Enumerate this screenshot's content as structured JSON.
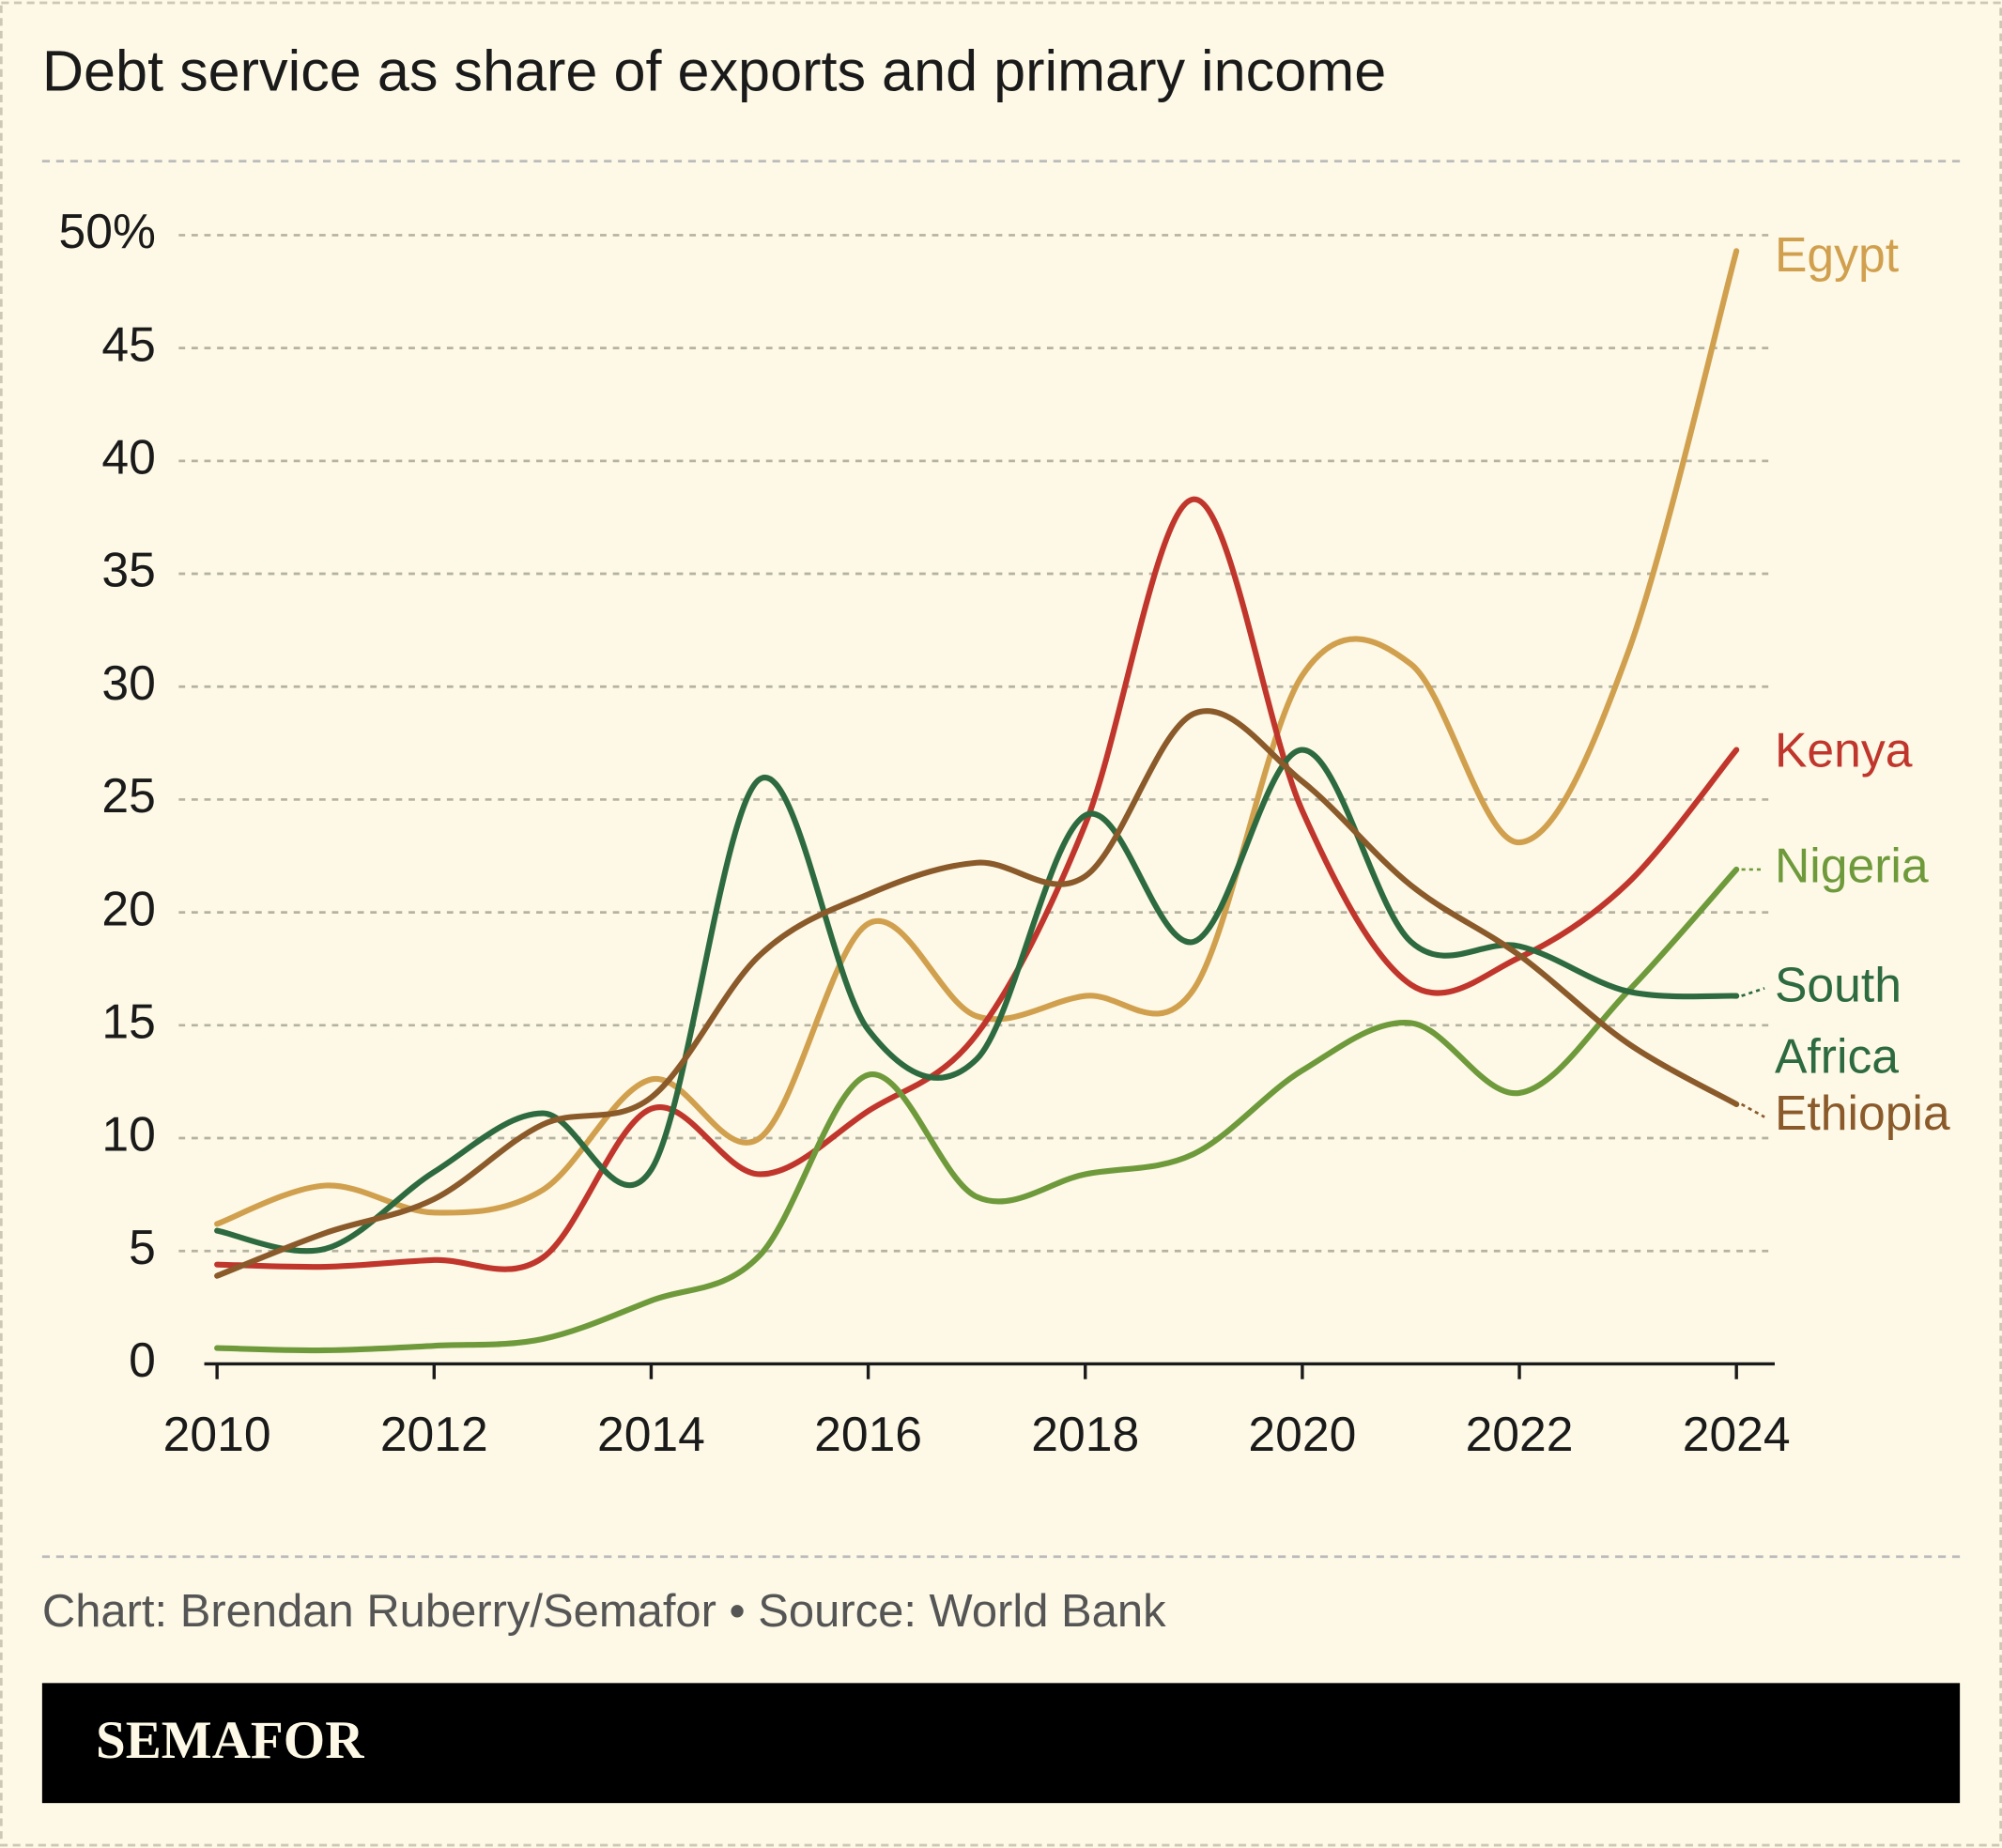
{
  "chart_data": {
    "type": "line",
    "title": "Debt service as share of exports and primary income",
    "source": "Chart: Brendan Ruberry/Semafor • Source: World Bank",
    "brand": "SEMAFOR",
    "x": [
      2010,
      2011,
      2012,
      2013,
      2014,
      2015,
      2016,
      2017,
      2018,
      2019,
      2020,
      2021,
      2022,
      2023,
      2024
    ],
    "xlim": [
      2010,
      2024
    ],
    "xticks": [
      2010,
      2012,
      2014,
      2016,
      2018,
      2020,
      2022,
      2024
    ],
    "ylim": [
      0,
      50
    ],
    "yticks": [
      0,
      5,
      10,
      15,
      20,
      25,
      30,
      35,
      40,
      45,
      {
        "value": 50,
        "label": "50%"
      }
    ],
    "grid": true,
    "series": [
      {
        "name": "Egypt",
        "color": "#d1a04e",
        "values": [
          6.2,
          7.9,
          6.7,
          7.7,
          12.6,
          10.0,
          19.5,
          15.4,
          16.3,
          16.6,
          30.5,
          31.0,
          23.1,
          31.5,
          49.3
        ]
      },
      {
        "name": "Kenya",
        "color": "#c0362c",
        "values": [
          4.4,
          4.3,
          4.6,
          4.7,
          11.3,
          8.4,
          11.2,
          14.6,
          23.9,
          38.3,
          24.5,
          16.8,
          18.0,
          21.3,
          27.2
        ]
      },
      {
        "name": "Nigeria",
        "color": "#6f9a3c",
        "values": [
          0.7,
          0.6,
          0.8,
          1.1,
          2.8,
          4.8,
          12.8,
          7.4,
          8.4,
          9.3,
          13.0,
          15.1,
          12.0,
          16.5,
          21.9
        ]
      },
      {
        "name": "South Africa",
        "color": "#2e6a3f",
        "values": [
          5.9,
          5.1,
          8.5,
          11.1,
          8.6,
          25.9,
          14.8,
          13.5,
          24.3,
          18.7,
          27.2,
          18.7,
          18.5,
          16.5,
          16.3
        ]
      },
      {
        "name": "Ethiopia",
        "color": "#8b5a2b",
        "values": [
          3.9,
          5.8,
          7.3,
          10.6,
          11.8,
          18.1,
          20.8,
          22.2,
          21.6,
          28.8,
          25.8,
          21.2,
          18.1,
          14.2,
          11.5
        ]
      }
    ]
  }
}
